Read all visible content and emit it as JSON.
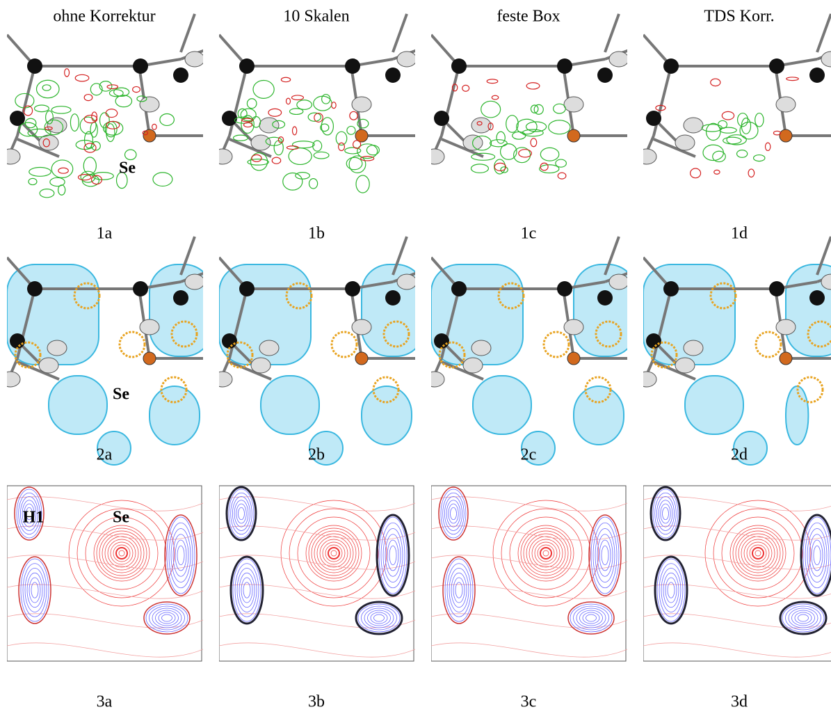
{
  "columns": [
    "ohne Korrektur",
    "10 Skalen",
    "feste Box",
    "TDS Korr."
  ],
  "rows": [
    {
      "panels": [
        "1a",
        "1b",
        "1c",
        "1d"
      ]
    },
    {
      "panels": [
        "2a",
        "2b",
        "2c",
        "2d"
      ]
    },
    {
      "panels": [
        "3a",
        "3b",
        "3c",
        "3d"
      ]
    }
  ],
  "annotations": {
    "row1_se": "Se",
    "row2_se": "Se",
    "row3_h1": "H1",
    "row3_se": "Se"
  }
}
